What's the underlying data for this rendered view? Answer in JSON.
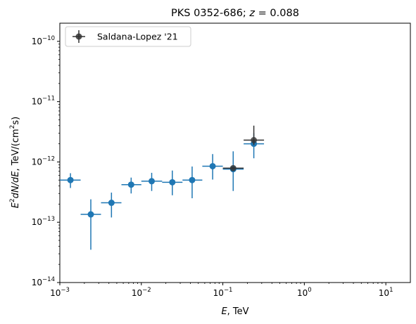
{
  "chart_data": {
    "type": "scatter",
    "title_main": "PKS 0352-686; ",
    "title_z": "z",
    "title_eq": " = 0.088",
    "xlabel_main": "E",
    "xlabel_unit": ", TeV",
    "ylabel": {
      "e": "E",
      "two": "2",
      "dnde": "dN/dE",
      "unit": ", TeV/(cm",
      "sup2": "2",
      "s": "s)"
    },
    "x_scale": "log",
    "y_scale": "log",
    "xlim": [
      0.001,
      20
    ],
    "ylim": [
      1e-14,
      2e-10
    ],
    "x_ticks": [
      {
        "value": 0.001,
        "base": "10",
        "exp": "−3"
      },
      {
        "value": 0.01,
        "base": "10",
        "exp": "−2"
      },
      {
        "value": 0.1,
        "base": "10",
        "exp": "−1"
      },
      {
        "value": 1,
        "base": "10",
        "exp": "0"
      },
      {
        "value": 10,
        "base": "10",
        "exp": "1"
      }
    ],
    "y_ticks": [
      {
        "value": 1e-14,
        "base": "10",
        "exp": "−14"
      },
      {
        "value": 1e-13,
        "base": "10",
        "exp": "−13"
      },
      {
        "value": 1e-12,
        "base": "10",
        "exp": "−12"
      },
      {
        "value": 1e-11,
        "base": "10",
        "exp": "−11"
      },
      {
        "value": 1e-10,
        "base": "10",
        "exp": "−10"
      }
    ],
    "legend_position": "top-left",
    "series": [
      {
        "name": "Saldana-Lopez '21",
        "color": "#1f77b4",
        "points": [
          {
            "x": 0.00135,
            "x_lo": 0.001,
            "x_hi": 0.0018,
            "y": 5e-13,
            "y_lo": 3.7e-13,
            "y_hi": 6.5e-13
          },
          {
            "x": 0.0024,
            "x_lo": 0.0018,
            "x_hi": 0.0032,
            "y": 1.35e-13,
            "y_lo": 3.5e-14,
            "y_hi": 2.4e-13
          },
          {
            "x": 0.0043,
            "x_lo": 0.0032,
            "x_hi": 0.0057,
            "y": 2.1e-13,
            "y_lo": 1.2e-13,
            "y_hi": 3.1e-13
          },
          {
            "x": 0.0075,
            "x_lo": 0.0057,
            "x_hi": 0.01,
            "y": 4.2e-13,
            "y_lo": 3e-13,
            "y_hi": 5.5e-13
          },
          {
            "x": 0.0134,
            "x_lo": 0.01,
            "x_hi": 0.018,
            "y": 4.8e-13,
            "y_lo": 3.3e-13,
            "y_hi": 6.6e-13
          },
          {
            "x": 0.024,
            "x_lo": 0.018,
            "x_hi": 0.032,
            "y": 4.6e-13,
            "y_lo": 2.8e-13,
            "y_hi": 7.2e-13
          },
          {
            "x": 0.042,
            "x_lo": 0.032,
            "x_hi": 0.056,
            "y": 5e-13,
            "y_lo": 2.5e-13,
            "y_hi": 8.4e-13
          },
          {
            "x": 0.075,
            "x_lo": 0.056,
            "x_hi": 0.1,
            "y": 8.5e-13,
            "y_lo": 5.1e-13,
            "y_hi": 1.35e-12
          },
          {
            "x": 0.134,
            "x_lo": 0.1,
            "x_hi": 0.18,
            "y": 7.6e-13,
            "y_lo": 3.3e-13,
            "y_hi": 1.5e-12
          },
          {
            "x": 0.24,
            "x_lo": 0.18,
            "x_hi": 0.32,
            "y": 2e-12,
            "y_lo": 1.15e-12,
            "y_hi": 3e-12
          }
        ]
      },
      {
        "name": "",
        "color": "#333333",
        "points": [
          {
            "x": 0.134,
            "x_lo": 0.1,
            "x_hi": 0.18,
            "y": 7.9e-13,
            "y_lo": 7.6e-13,
            "y_hi": 8.2e-13
          },
          {
            "x": 0.24,
            "x_lo": 0.18,
            "x_hi": 0.32,
            "y": 2.3e-12,
            "y_lo": 1.9e-12,
            "y_hi": 4e-12
          }
        ]
      }
    ]
  }
}
